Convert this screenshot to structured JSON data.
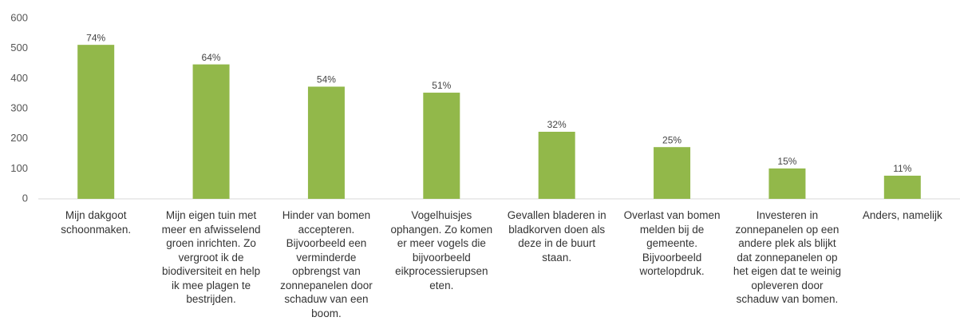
{
  "chart_data": {
    "type": "bar",
    "categories": [
      "Mijn dakgoot schoonmaken.",
      "Mijn eigen tuin met meer en afwisselend groen inrichten. Zo vergroot ik de biodiversiteit en help ik mee plagen te bestrijden.",
      "Hinder van bomen accepteren. Bijvoorbeeld een verminderde opbrengst van zonnepanelen door schaduw van een boom.",
      "Vogelhuisjes ophangen. Zo komen er meer vogels die bijvoorbeeld eikprocessierupsen eten.",
      "Gevallen bladeren in bladkorven doen als deze in de buurt staan.",
      "Overlast van bomen melden bij de gemeente. Bijvoorbeeld wortelopdruk.",
      "Investeren in zonnepanelen op een andere plek als blijkt dat zonnepanelen op het eigen dat te weinig opleveren door schaduw van bomen.",
      "Anders, namelijk"
    ],
    "values": [
      512,
      447,
      373,
      353,
      223,
      172,
      101,
      77
    ],
    "data_labels": [
      "74%",
      "64%",
      "54%",
      "51%",
      "32%",
      "25%",
      "15%",
      "11%"
    ],
    "color": "#92b84a",
    "ylim": [
      0,
      600
    ],
    "yticks": [
      0,
      100,
      200,
      300,
      400,
      500,
      600
    ],
    "grid": false
  }
}
